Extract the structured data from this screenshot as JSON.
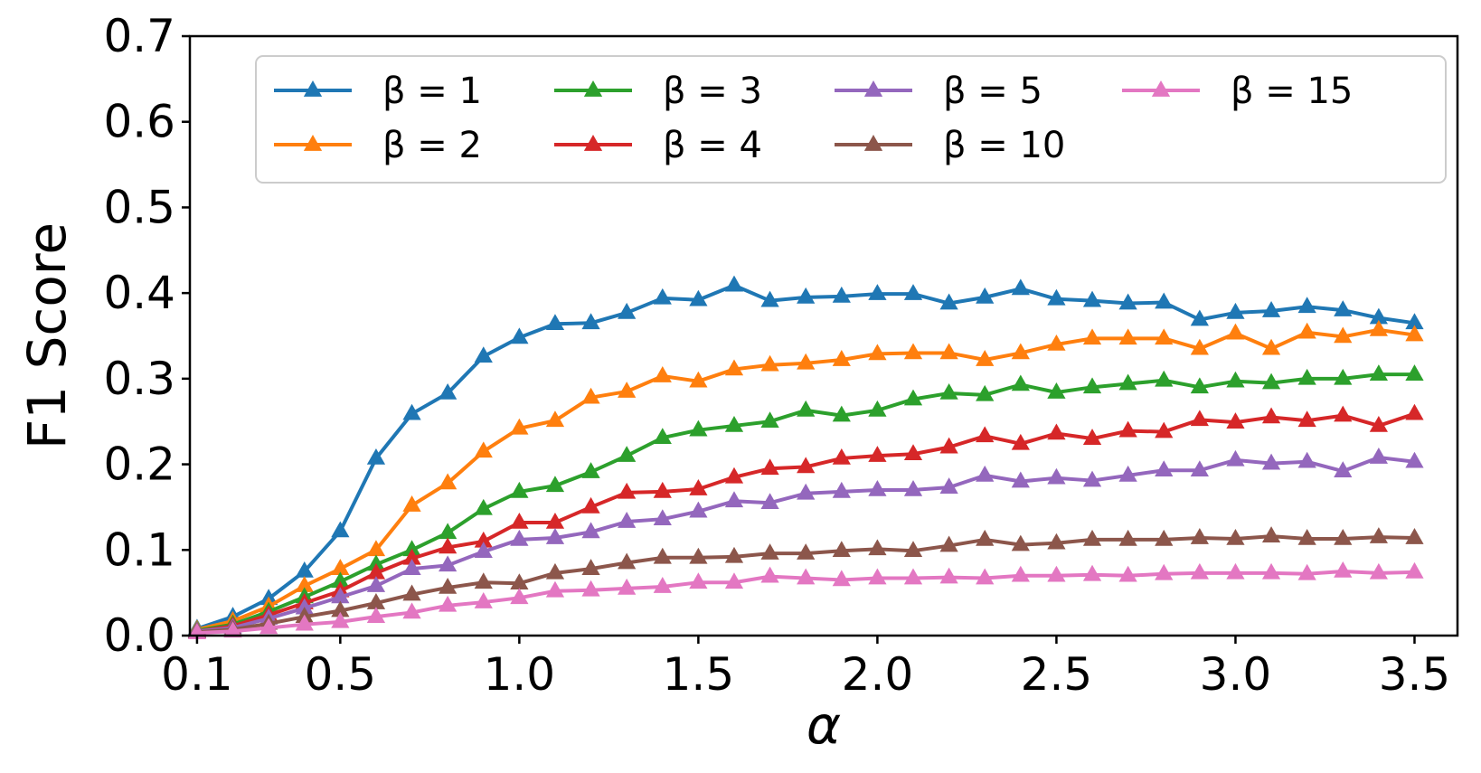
{
  "chart_data": {
    "type": "line",
    "title": "",
    "xlabel": "α",
    "ylabel": "F1 Score",
    "xlim": [
      0.08,
      3.62
    ],
    "ylim": [
      0.0,
      0.7
    ],
    "xticks": [
      0.1,
      0.5,
      1.0,
      1.5,
      2.0,
      2.5,
      3.0,
      3.5
    ],
    "xtick_labels": [
      "0.1",
      "0.5",
      "1.0",
      "1.5",
      "2.0",
      "2.5",
      "3.0",
      "3.5"
    ],
    "yticks": [
      0.0,
      0.1,
      0.2,
      0.3,
      0.4,
      0.5,
      0.6,
      0.7
    ],
    "ytick_labels": [
      "0.0",
      "0.1",
      "0.2",
      "0.3",
      "0.4",
      "0.5",
      "0.6",
      "0.7"
    ],
    "grid": false,
    "marker": "triangle-up",
    "legend": {
      "placement": "top-right",
      "columns": 4
    },
    "x": [
      0.1,
      0.2,
      0.3,
      0.4,
      0.5,
      0.6,
      0.7,
      0.8,
      0.9,
      1.0,
      1.1,
      1.2,
      1.3,
      1.4,
      1.5,
      1.6,
      1.7,
      1.8,
      1.9,
      2.0,
      2.1,
      2.2,
      2.3,
      2.4,
      2.5,
      2.6,
      2.7,
      2.8,
      2.9,
      3.0,
      3.1,
      3.2,
      3.3,
      3.4,
      3.5
    ],
    "series": [
      {
        "name": "β = 1",
        "color": "#1f77b4",
        "values": [
          0.008,
          0.022,
          0.043,
          0.075,
          0.122,
          0.207,
          0.259,
          0.283,
          0.326,
          0.348,
          0.364,
          0.365,
          0.377,
          0.394,
          0.392,
          0.409,
          0.391,
          0.395,
          0.396,
          0.399,
          0.399,
          0.388,
          0.395,
          0.405,
          0.393,
          0.391,
          0.388,
          0.389,
          0.369,
          0.377,
          0.379,
          0.384,
          0.38,
          0.371,
          0.365
        ]
      },
      {
        "name": "β = 2",
        "color": "#ff7f0e",
        "values": [
          0.007,
          0.017,
          0.034,
          0.058,
          0.078,
          0.1,
          0.152,
          0.178,
          0.215,
          0.242,
          0.251,
          0.278,
          0.285,
          0.303,
          0.297,
          0.311,
          0.316,
          0.318,
          0.322,
          0.329,
          0.33,
          0.33,
          0.322,
          0.33,
          0.34,
          0.347,
          0.347,
          0.347,
          0.335,
          0.353,
          0.335,
          0.354,
          0.349,
          0.357,
          0.351
        ]
      },
      {
        "name": "β = 3",
        "color": "#2ca02c",
        "values": [
          0.006,
          0.013,
          0.028,
          0.045,
          0.063,
          0.083,
          0.1,
          0.12,
          0.148,
          0.168,
          0.175,
          0.191,
          0.21,
          0.231,
          0.24,
          0.245,
          0.25,
          0.263,
          0.257,
          0.263,
          0.276,
          0.283,
          0.281,
          0.293,
          0.284,
          0.29,
          0.294,
          0.298,
          0.29,
          0.297,
          0.295,
          0.3,
          0.3,
          0.305,
          0.305
        ]
      },
      {
        "name": "β = 4",
        "color": "#d62728",
        "values": [
          0.005,
          0.011,
          0.024,
          0.038,
          0.052,
          0.073,
          0.09,
          0.103,
          0.11,
          0.132,
          0.132,
          0.15,
          0.167,
          0.168,
          0.171,
          0.185,
          0.195,
          0.197,
          0.207,
          0.21,
          0.212,
          0.22,
          0.233,
          0.224,
          0.236,
          0.23,
          0.239,
          0.238,
          0.252,
          0.249,
          0.255,
          0.251,
          0.257,
          0.245,
          0.259
        ]
      },
      {
        "name": "β = 5",
        "color": "#9467bd",
        "values": [
          0.005,
          0.009,
          0.02,
          0.032,
          0.045,
          0.058,
          0.078,
          0.082,
          0.098,
          0.112,
          0.114,
          0.121,
          0.133,
          0.136,
          0.145,
          0.157,
          0.155,
          0.166,
          0.168,
          0.17,
          0.17,
          0.173,
          0.187,
          0.18,
          0.184,
          0.181,
          0.187,
          0.193,
          0.193,
          0.205,
          0.201,
          0.203,
          0.192,
          0.208,
          0.203
        ]
      },
      {
        "name": "β = 10",
        "color": "#8c564b",
        "values": [
          0.004,
          0.007,
          0.014,
          0.022,
          0.029,
          0.038,
          0.048,
          0.056,
          0.062,
          0.061,
          0.073,
          0.078,
          0.085,
          0.091,
          0.091,
          0.092,
          0.096,
          0.096,
          0.099,
          0.101,
          0.099,
          0.105,
          0.112,
          0.106,
          0.108,
          0.112,
          0.112,
          0.112,
          0.114,
          0.113,
          0.116,
          0.113,
          0.113,
          0.115,
          0.114
        ]
      },
      {
        "name": "β = 15",
        "color": "#e377c2",
        "values": [
          0.003,
          0.005,
          0.009,
          0.013,
          0.016,
          0.022,
          0.027,
          0.035,
          0.039,
          0.044,
          0.052,
          0.053,
          0.055,
          0.057,
          0.062,
          0.062,
          0.069,
          0.067,
          0.065,
          0.067,
          0.067,
          0.068,
          0.067,
          0.07,
          0.07,
          0.071,
          0.07,
          0.072,
          0.073,
          0.073,
          0.073,
          0.072,
          0.075,
          0.073,
          0.074
        ]
      }
    ]
  }
}
